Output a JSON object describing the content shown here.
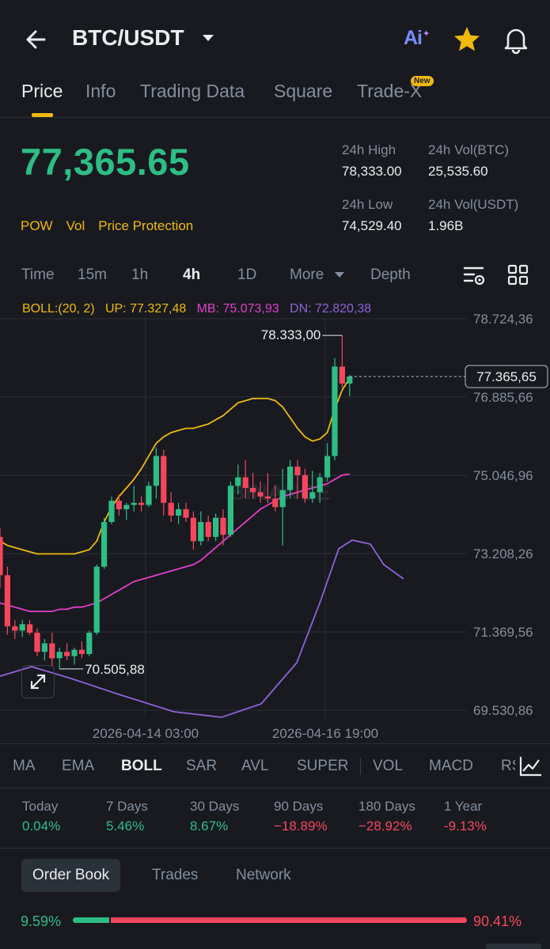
{
  "header": {
    "pair": "BTC/USDT",
    "ai_label": "Ai",
    "icons": [
      "back-arrow-icon",
      "caret-down-icon",
      "ai-icon",
      "star-icon",
      "bell-icon"
    ]
  },
  "tabs": [
    "Price",
    "Info",
    "Trading Data",
    "Square",
    "Trade-X"
  ],
  "new_badge": "New",
  "ticker": {
    "last_price": "77,365.65",
    "high_label": "24h High",
    "high": "78,333.00",
    "vol_btc_label": "24h Vol(BTC)",
    "vol_btc": "25,535.60",
    "low_label": "24h Low",
    "low": "74,529.40",
    "vol_usdt_label": "24h Vol(USDT)",
    "vol_usdt": "1.96B",
    "flags": [
      "POW",
      "Vol",
      "Price Protection"
    ]
  },
  "timeframes": [
    "Time",
    "15m",
    "1h",
    "4h",
    "1D",
    "More",
    "Depth"
  ],
  "active_timeframe": "4h",
  "boll": {
    "label": "BOLL:(20, 2)",
    "up": "UP: 77.327,48",
    "mb": "MB: 75.073,93",
    "dn": "DN: 72.820,38"
  },
  "chart_data": {
    "type": "candlestick",
    "y_ticks": [
      "78.724,36",
      "76.885,66",
      "75.046,96",
      "73.208,26",
      "71.369,56",
      "69.530,86"
    ],
    "x_ticks": [
      "2026-04-14 03:00",
      "2026-04-16 19:00"
    ],
    "ylim": [
      69530.86,
      78724.36
    ],
    "current_price_tag": "77.365,65",
    "high_marker": "78.333,00",
    "low_marker": "70.505,88",
    "watermark": "BINANCE",
    "colors": {
      "up": "#2ebd85",
      "down": "#f6465d",
      "upper": "#f0b90b",
      "mid": "#e040c8",
      "lower": "#8e63d6"
    },
    "candles": [
      [
        73600,
        73800,
        72400,
        72700
      ],
      [
        72700,
        72900,
        71300,
        71500
      ],
      [
        71500,
        71650,
        71200,
        71400
      ],
      [
        71400,
        71650,
        71250,
        71550
      ],
      [
        71550,
        71650,
        71300,
        71350
      ],
      [
        71350,
        71450,
        70800,
        70900
      ],
      [
        70900,
        71200,
        70700,
        71100
      ],
      [
        71100,
        71350,
        70550,
        70750
      ],
      [
        70750,
        71000,
        70500,
        70900
      ],
      [
        70900,
        71100,
        70700,
        70800
      ],
      [
        70800,
        71000,
        70600,
        70950
      ],
      [
        70950,
        71150,
        70750,
        70850
      ],
      [
        70850,
        71400,
        70800,
        71350
      ],
      [
        71350,
        72950,
        71300,
        72900
      ],
      [
        72900,
        74050,
        72850,
        73950
      ],
      [
        73950,
        74550,
        73900,
        74450
      ],
      [
        74450,
        74600,
        74100,
        74250
      ],
      [
        74250,
        74400,
        74000,
        74350
      ],
      [
        74350,
        74800,
        74200,
        74400
      ],
      [
        74400,
        74550,
        74200,
        74350
      ],
      [
        74350,
        74900,
        74300,
        74800
      ],
      [
        74800,
        75700,
        74500,
        75500
      ],
      [
        75500,
        75650,
        74100,
        74400
      ],
      [
        74400,
        74650,
        73950,
        74100
      ],
      [
        74100,
        74400,
        73900,
        74250
      ],
      [
        74250,
        74400,
        73950,
        74050
      ],
      [
        74050,
        74200,
        73300,
        73500
      ],
      [
        73500,
        74200,
        73400,
        73950
      ],
      [
        73950,
        74100,
        73500,
        73600
      ],
      [
        73600,
        74150,
        73500,
        74050
      ],
      [
        74050,
        74250,
        73400,
        73650
      ],
      [
        73650,
        74900,
        73600,
        74800
      ],
      [
        74800,
        75300,
        74600,
        75000
      ],
      [
        75000,
        75400,
        74500,
        74750
      ],
      [
        74750,
        75100,
        74500,
        74650
      ],
      [
        74650,
        74900,
        74400,
        74550
      ],
      [
        74550,
        75100,
        74400,
        74500
      ],
      [
        74500,
        74800,
        74200,
        74300
      ],
      [
        74300,
        75200,
        73400,
        74700
      ],
      [
        74700,
        75400,
        74500,
        75250
      ],
      [
        75250,
        75400,
        74500,
        75050
      ],
      [
        75050,
        75200,
        74400,
        74500
      ],
      [
        74500,
        75150,
        74400,
        74650
      ],
      [
        74650,
        75100,
        74400,
        75000
      ],
      [
        75000,
        75800,
        74900,
        75500
      ],
      [
        75500,
        77800,
        75400,
        77600
      ],
      [
        77600,
        78333,
        77100,
        77200
      ],
      [
        77200,
        77400,
        76900,
        77365.65
      ]
    ],
    "upper_band": [
      73500,
      73400,
      73350,
      73300,
      73250,
      73200,
      73200,
      73200,
      73200,
      73200,
      73200,
      73250,
      73300,
      73500,
      73950,
      74300,
      74550,
      74750,
      74950,
      75200,
      75500,
      75800,
      75950,
      76050,
      76100,
      76150,
      76150,
      76200,
      76250,
      76350,
      76450,
      76600,
      76750,
      76800,
      76850,
      76850,
      76850,
      76800,
      76650,
      76400,
      76150,
      75950,
      75850,
      75900,
      76050,
      76600,
      77050,
      77327.48
    ],
    "middle_band": [
      72050,
      72000,
      71950,
      71900,
      71850,
      71850,
      71850,
      71850,
      71900,
      71900,
      71950,
      71950,
      72000,
      72050,
      72150,
      72250,
      72350,
      72450,
      72550,
      72600,
      72650,
      72700,
      72750,
      72800,
      72850,
      72900,
      72950,
      73050,
      73200,
      73350,
      73500,
      73650,
      73800,
      73950,
      74100,
      74250,
      74350,
      74450,
      74550,
      74600,
      74650,
      74700,
      74750,
      74800,
      74850,
      74950,
      75050,
      75073.93
    ]
  },
  "indicators": [
    "MA",
    "EMA",
    "BOLL",
    "SAR",
    "AVL",
    "SUPER",
    "VOL",
    "MACD",
    "RS"
  ],
  "active_indicator": "BOLL",
  "performance": [
    {
      "label": "Today",
      "value": "0.04%",
      "dir": "pos"
    },
    {
      "label": "7 Days",
      "value": "5.46%",
      "dir": "pos"
    },
    {
      "label": "30 Days",
      "value": "8.67%",
      "dir": "pos"
    },
    {
      "label": "90 Days",
      "value": "−18.89%",
      "dir": "neg"
    },
    {
      "label": "180 Days",
      "value": "−28.92%",
      "dir": "neg"
    },
    {
      "label": "1 Year",
      "value": "-9.13%",
      "dir": "neg"
    }
  ],
  "book_tabs": [
    "Order Book",
    "Trades",
    "Network"
  ],
  "ratio": {
    "buy": "9.59%",
    "sell": "90.41%",
    "buy_fraction": 0.0959
  }
}
